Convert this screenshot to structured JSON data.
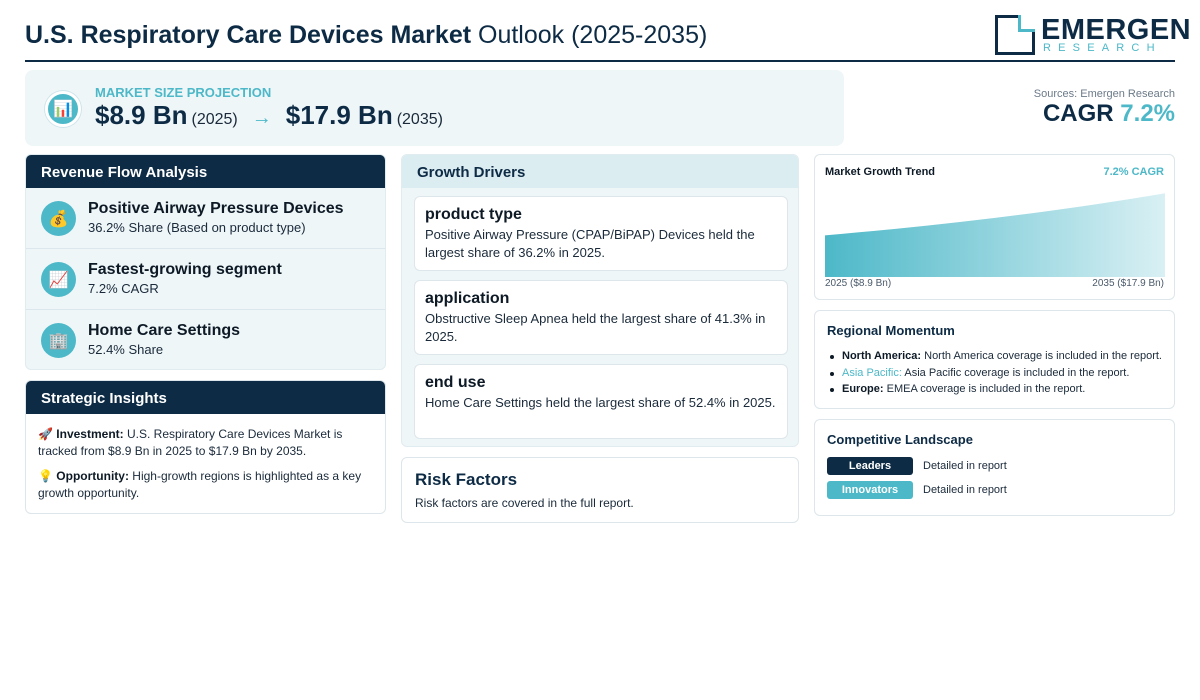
{
  "header": {
    "title_bold": "U.S. Respiratory Care Devices Market",
    "title_rest": "Outlook (2025-2035)",
    "logo_main": "EMERGEN",
    "logo_sub": "RESEARCH"
  },
  "projection": {
    "label": "MARKET SIZE PROJECTION",
    "start_value": "$8.9 Bn",
    "start_year": "(2025)",
    "arrow": "→",
    "end_value": "$17.9 Bn",
    "end_year": "(2035)",
    "icon": "bar-chart-icon"
  },
  "summary": {
    "sources": "Sources: Emergen Research",
    "cagr_label": "CAGR",
    "cagr_value": "7.2%"
  },
  "revenue": {
    "title": "Revenue Flow Analysis",
    "items": [
      {
        "icon": "money-bag-icon",
        "title": "Positive Airway Pressure Devices",
        "sub": "36.2% Share (Based on product type)"
      },
      {
        "icon": "trend-up-icon",
        "title": "Fastest-growing segment",
        "sub": "7.2% CAGR"
      },
      {
        "icon": "building-icon",
        "title": "Home Care Settings",
        "sub": "52.4% Share"
      }
    ]
  },
  "strategic": {
    "title": "Strategic Insights",
    "items": [
      {
        "icon": "rocket-icon",
        "label": "Investment:",
        "text": "U.S. Respiratory Care Devices Market is tracked from $8.9 Bn in 2025 to $17.9 Bn by 2035."
      },
      {
        "icon": "lightbulb-icon",
        "label": "Opportunity:",
        "text": "High-growth regions is highlighted as a key growth opportunity."
      }
    ]
  },
  "growth": {
    "title": "Growth Drivers",
    "drivers": [
      {
        "title": "product type",
        "text": "Positive Airway Pressure (CPAP/BiPAP) Devices held the largest share of 36.2% in 2025."
      },
      {
        "title": "application",
        "text": "Obstructive Sleep Apnea held the largest share of 41.3% in 2025."
      },
      {
        "title": "end use",
        "text": "Home Care Settings held the largest share of 52.4% in 2025."
      }
    ]
  },
  "risk": {
    "title": "Risk Factors",
    "text": "Risk factors are covered in the full report."
  },
  "trend": {
    "title": "Market Growth Trend",
    "cagr": "7.2% CAGR",
    "start_label": "2025 ($8.9 Bn)",
    "end_label": "2035 ($17.9 Bn)"
  },
  "chart_data": {
    "type": "area",
    "title": "Market Growth Trend",
    "x": [
      2025,
      2035
    ],
    "values": [
      8.9,
      17.9
    ],
    "unit": "$ Bn",
    "annotation": "7.2% CAGR",
    "accent_color": "#4db8c8"
  },
  "regional": {
    "title": "Regional Momentum",
    "items": [
      {
        "name": "North America:",
        "text": "North America coverage is included in the report."
      },
      {
        "name": "Asia Pacific:",
        "text": "Asia Pacific coverage is included in the report."
      },
      {
        "name": "Europe:",
        "text": "EMEA coverage is included in the report."
      }
    ]
  },
  "competitive": {
    "title": "Competitive Landscape",
    "rows": [
      {
        "badge": "Leaders",
        "text": "Detailed in report"
      },
      {
        "badge": "Innovators",
        "text": "Detailed in report"
      }
    ]
  },
  "colors": {
    "navy": "#0d2b45",
    "teal": "#4db8c8",
    "panel": "#eef6f8"
  }
}
